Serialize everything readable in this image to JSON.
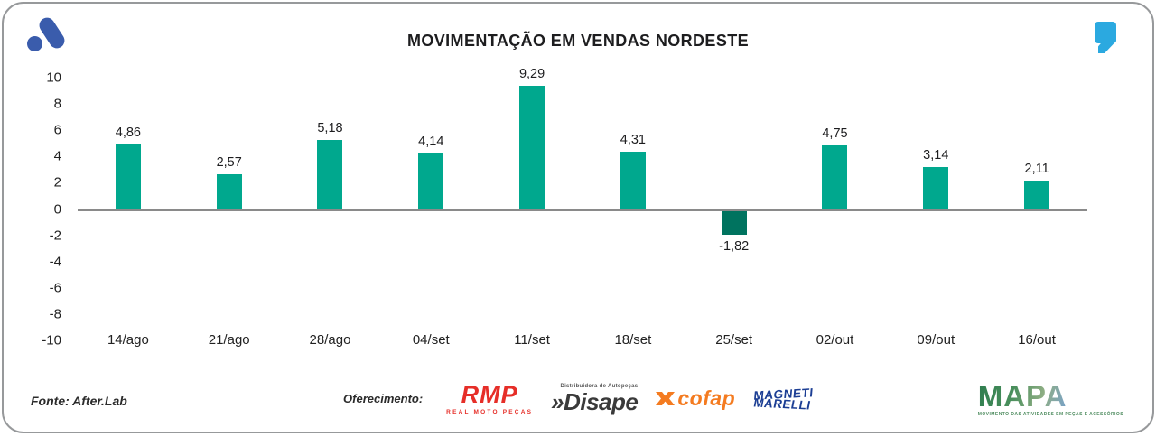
{
  "chart_data": {
    "type": "bar",
    "title": "MOVIMENTAÇÃO EM VENDAS NORDESTE",
    "categories": [
      "14/ago",
      "21/ago",
      "28/ago",
      "04/set",
      "11/set",
      "18/set",
      "25/set",
      "02/out",
      "09/out",
      "16/out"
    ],
    "values": [
      4.86,
      2.57,
      5.18,
      4.14,
      9.29,
      4.31,
      -1.82,
      4.75,
      3.14,
      2.11
    ],
    "value_labels": [
      "4,86",
      "2,57",
      "5,18",
      "4,14",
      "9,29",
      "4,31",
      "-1,82",
      "4,75",
      "3,14",
      "2,11"
    ],
    "xlabel": "",
    "ylabel": "",
    "ylim": [
      -10,
      10
    ],
    "yticks": [
      10,
      8,
      6,
      4,
      2,
      0,
      -2,
      -4,
      -6,
      -8,
      -10
    ],
    "grid": false,
    "legend": false,
    "colors": {
      "positive_bar": "#00a88e",
      "negative_bar": "#00735f",
      "axis_line": "#8a8a8a"
    }
  },
  "branding": {
    "after_logo_color": "#3a5cac",
    "quote_mark_color": "#2ba9e0"
  },
  "footer": {
    "source": "Fonte: After.Lab",
    "sponsor_label": "Oferecimento:",
    "sponsors": {
      "rmp": {
        "name": "RMP",
        "subtext": "REAL MOTO PEÇAS",
        "color": "#e62e28"
      },
      "disape": {
        "name": "»Disape",
        "subtext": "Distribuidora de Autopeças",
        "color": "#3a3a3a"
      },
      "cofap": {
        "name": "cofap",
        "color": "#f47b20"
      },
      "marelli": {
        "line1": "MAGNETI",
        "line2": "MARELLI",
        "color": "#1c3e94"
      }
    },
    "mapa": {
      "name": "MAPA",
      "tagline": "MOVIMENTO DAS ATIVIDADES EM PEÇAS E ACESSÓRIOS"
    }
  }
}
